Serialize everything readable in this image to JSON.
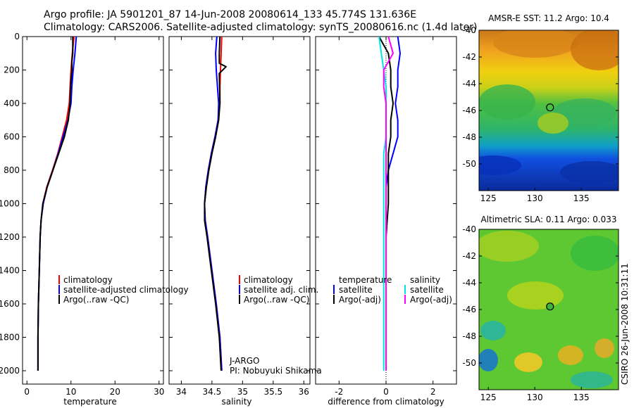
{
  "header": {
    "line1": "Argo profile: JA 5901201_87 14-Jun-2008 20080614_133 45.774S 131.636E",
    "line2": "Climatology: CARS2006. Satellite-adjusted climatology: synTS_20080616.nc (1.4d later)"
  },
  "footer": {
    "stamp": "CSIRO 26-Jun-2008 10:31:11"
  },
  "chart_data": [
    {
      "type": "line",
      "id": "temperature",
      "xlabel": "temperature",
      "ylabel": "",
      "xlim": [
        -1,
        31
      ],
      "ylim": [
        2080,
        0
      ],
      "xticks": [
        0,
        10,
        20,
        30
      ],
      "yticks": [
        0,
        200,
        400,
        600,
        800,
        1000,
        1200,
        1400,
        1600,
        1800,
        2000
      ],
      "legend": {
        "placement": "bottom-right",
        "entries": [
          "climatology",
          "satellite-adjusted climatology",
          "Argo(..raw -QC)"
        ]
      },
      "series": [
        {
          "name": "climatology",
          "color": "#ff0000",
          "x": [
            10.7,
            10.3,
            10.0,
            9.8,
            9.6,
            9.0,
            8.0,
            7.0,
            5.8,
            4.5,
            3.6,
            3.2,
            3.0,
            2.8,
            2.6,
            2.5,
            2.5
          ],
          "y": [
            0,
            100,
            200,
            300,
            400,
            500,
            600,
            700,
            800,
            900,
            1000,
            1100,
            1200,
            1400,
            1600,
            1800,
            2000
          ]
        },
        {
          "name": "satellite-adjusted climatology",
          "color": "#0000ff",
          "x": [
            11.2,
            10.9,
            10.5,
            10.2,
            10.0,
            9.3,
            8.2,
            7.1,
            5.9,
            4.6,
            3.7,
            3.2,
            3.0,
            2.8,
            2.6,
            2.5,
            2.5
          ],
          "y": [
            0,
            100,
            200,
            300,
            400,
            500,
            600,
            700,
            800,
            900,
            1000,
            1100,
            1200,
            1400,
            1600,
            1800,
            2000
          ]
        },
        {
          "name": "Argo(..raw -QC)",
          "color": "#000000",
          "x": [
            10.4,
            10.4,
            10.2,
            10.2,
            9.9,
            9.8,
            9.4,
            8.5,
            7.2,
            5.9,
            4.6,
            3.6,
            3.2,
            3.0,
            2.8,
            2.6,
            2.5,
            2.5
          ],
          "y": [
            0,
            100,
            150,
            200,
            300,
            400,
            500,
            600,
            700,
            800,
            900,
            1000,
            1100,
            1200,
            1400,
            1600,
            1800,
            2000
          ]
        }
      ]
    },
    {
      "type": "line",
      "id": "salinity",
      "xlabel": "salinity",
      "ylabel": "",
      "xlim": [
        33.8,
        36.1
      ],
      "ylim": [
        2080,
        0
      ],
      "xticks": [
        34,
        34.5,
        35,
        35.5,
        36
      ],
      "xticklabels": [
        "34",
        "34.5",
        "35",
        "35.5",
        "36"
      ],
      "legend": {
        "placement": "bottom-right",
        "entries": [
          "climatology",
          "satellite adj. clim.",
          "Argo(..raw -QC)"
        ]
      },
      "annotations": [
        "J-ARGO",
        "PI: Nobuyuki Shikama"
      ],
      "series": [
        {
          "name": "climatology",
          "color": "#ff0000",
          "x": [
            34.66,
            34.65,
            34.64,
            34.63,
            34.63,
            34.6,
            34.55,
            34.49,
            34.44,
            34.4,
            34.38,
            34.39,
            34.43,
            34.5,
            34.57,
            34.63,
            34.66
          ],
          "y": [
            0,
            100,
            200,
            300,
            400,
            500,
            600,
            700,
            800,
            900,
            1000,
            1100,
            1200,
            1400,
            1600,
            1800,
            2000
          ]
        },
        {
          "name": "satellite adj. clim.",
          "color": "#0000ff",
          "x": [
            34.58,
            34.56,
            34.57,
            34.59,
            34.61,
            34.6,
            34.55,
            34.49,
            34.44,
            34.4,
            34.38,
            34.39,
            34.43,
            34.5,
            34.57,
            34.63,
            34.66
          ],
          "y": [
            0,
            100,
            200,
            300,
            400,
            500,
            600,
            700,
            800,
            900,
            1000,
            1100,
            1200,
            1400,
            1600,
            1800,
            2000
          ]
        },
        {
          "name": "Argo(..raw -QC)",
          "color": "#000000",
          "x": [
            34.63,
            34.62,
            34.62,
            34.73,
            34.62,
            34.63,
            34.61,
            34.56,
            34.5,
            34.45,
            34.41,
            34.38,
            34.38,
            34.42,
            34.49,
            34.56,
            34.62,
            34.65
          ],
          "y": [
            0,
            100,
            160,
            180,
            220,
            400,
            500,
            600,
            700,
            800,
            900,
            1000,
            1100,
            1200,
            1400,
            1600,
            1800,
            2000
          ]
        }
      ]
    },
    {
      "type": "line",
      "id": "difference",
      "xlabel": "difference from climatology",
      "ylabel": "",
      "xlim": [
        -3,
        3
      ],
      "ylim": [
        2080,
        0
      ],
      "xticks": [
        -2,
        0,
        2
      ],
      "legend": {
        "placement": "bottom",
        "groups": [
          {
            "title": "temperature",
            "entries": [
              "satellite",
              "Argo(-adj)"
            ]
          },
          {
            "title": "salinity",
            "entries": [
              "satellite",
              "Argo(-adj)"
            ]
          }
        ]
      },
      "series": [
        {
          "name": "temperature satellite",
          "color": "#0000ff",
          "x": [
            0.5,
            0.6,
            0.5,
            0.5,
            0.4,
            0.5,
            0.5,
            0.3,
            0.1,
            0.0,
            0.0,
            0.0,
            0.0,
            0.0,
            0.0
          ],
          "y": [
            0,
            100,
            200,
            300,
            400,
            500,
            600,
            700,
            800,
            900,
            1000,
            1200,
            1400,
            1600,
            2000
          ]
        },
        {
          "name": "temperature Argo(-adj)",
          "color": "#000000",
          "x": [
            -0.3,
            0.1,
            0.2,
            0.2,
            0.3,
            0.2,
            0.2,
            0.1,
            0.1,
            0.1,
            0.1,
            0.0,
            0.0,
            0.0,
            0.0
          ],
          "y": [
            0,
            100,
            200,
            300,
            400,
            500,
            600,
            700,
            800,
            900,
            1000,
            1200,
            1400,
            1600,
            2000
          ]
        },
        {
          "name": "salinity satellite",
          "color": "#00e5e5",
          "x": [
            -0.3,
            -0.2,
            -0.1,
            0.0,
            0.0,
            0.0,
            0.0,
            -0.1,
            -0.1,
            -0.1,
            -0.1,
            -0.1,
            -0.1,
            -0.1,
            -0.1
          ],
          "y": [
            0,
            100,
            200,
            300,
            400,
            500,
            600,
            700,
            800,
            900,
            1000,
            1200,
            1400,
            1600,
            2000
          ]
        },
        {
          "name": "salinity Argo(-adj)",
          "color": "#ff00ff",
          "x": [
            0.1,
            0.3,
            -0.1,
            -0.1,
            0.0,
            0.0,
            0.0,
            0.0,
            0.0,
            0.0,
            0.0,
            0.0,
            0.0,
            0.0,
            0.0
          ],
          "y": [
            0,
            100,
            200,
            300,
            400,
            500,
            600,
            700,
            800,
            900,
            1000,
            1200,
            1400,
            1600,
            2000
          ]
        }
      ]
    },
    {
      "type": "heatmap",
      "id": "sst-map",
      "title": "AMSR-E SST: 11.2 Argo: 10.4",
      "xlim": [
        124,
        139
      ],
      "ylim": [
        -52,
        -40
      ],
      "xticks": [
        125,
        130,
        135
      ],
      "yticks": [
        -40,
        -42,
        -44,
        -46,
        -48,
        -50
      ],
      "marker": {
        "lon": 131.636,
        "lat": -45.774
      }
    },
    {
      "type": "heatmap",
      "id": "sla-map",
      "title": "Altimetric SLA: 0.11 Argo: 0.033",
      "xlim": [
        124,
        139
      ],
      "ylim": [
        -52,
        -40
      ],
      "xticks": [
        125,
        130,
        135
      ],
      "yticks": [
        -40,
        -42,
        -44,
        -46,
        -48,
        -50
      ],
      "marker": {
        "lon": 131.636,
        "lat": -45.774
      }
    }
  ]
}
